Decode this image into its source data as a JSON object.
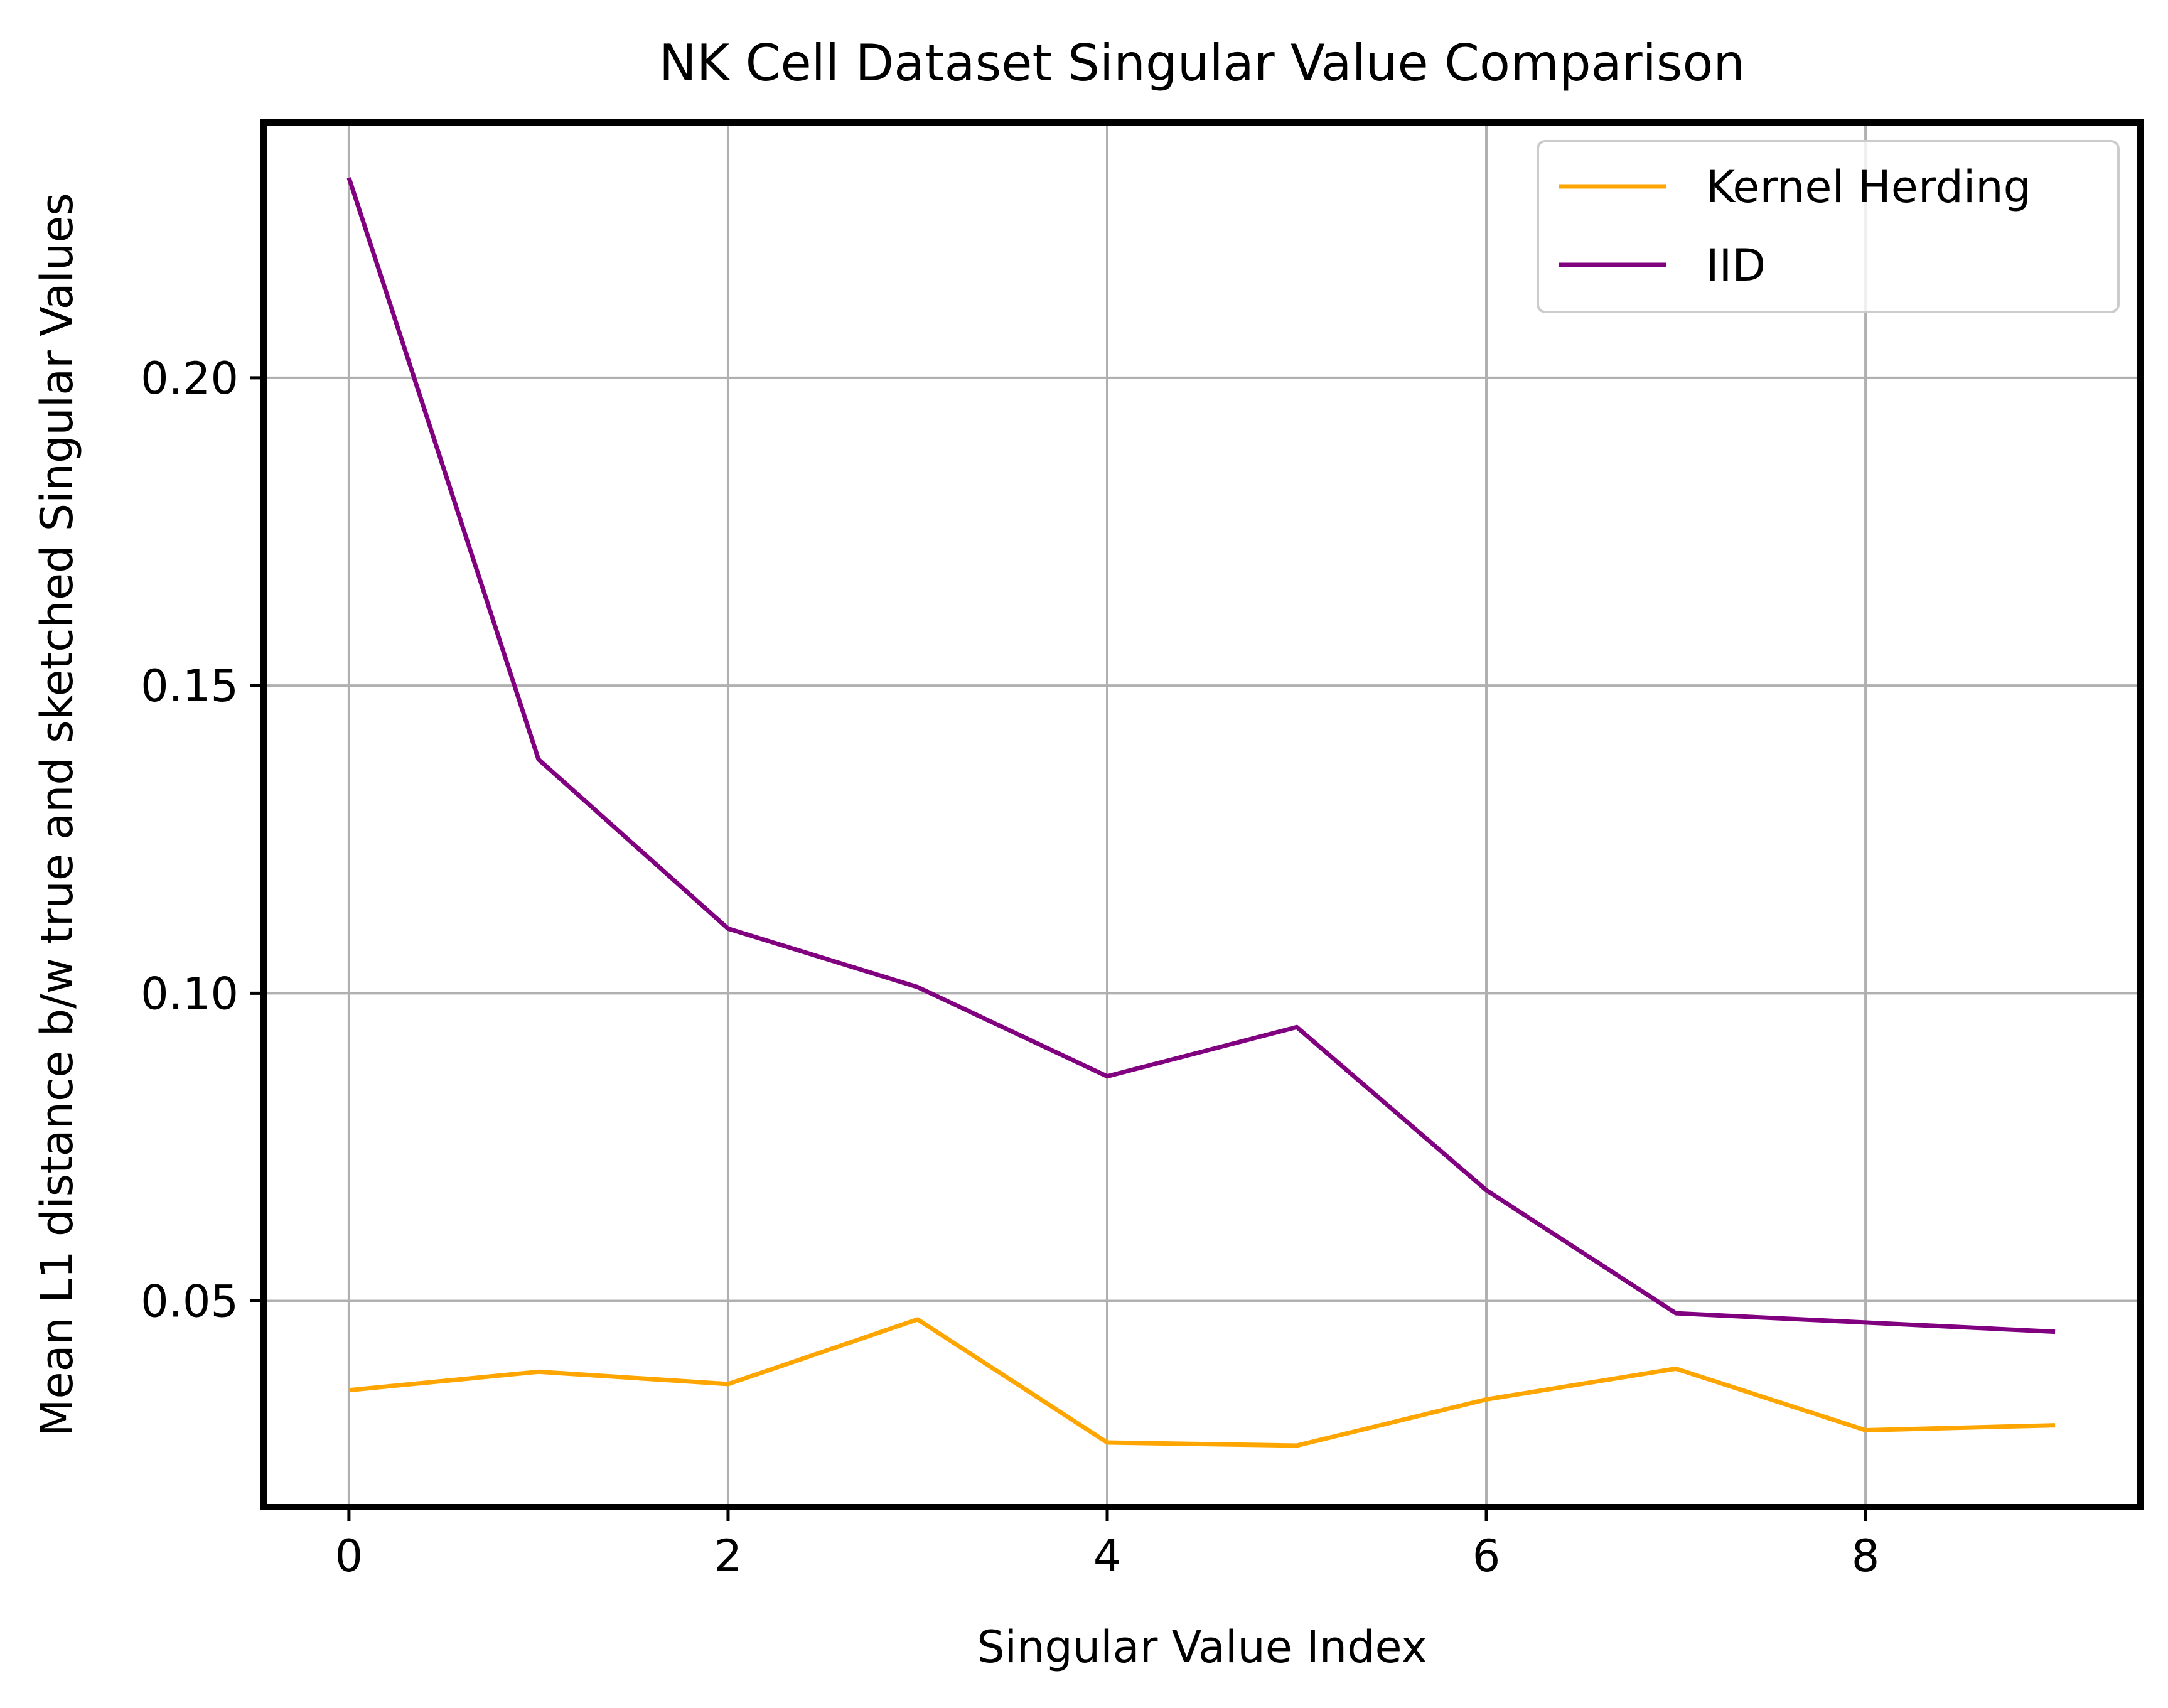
{
  "chart_data": {
    "type": "line",
    "title": "NK Cell Dataset Singular Value Comparison",
    "xlabel": "Singular Value Index",
    "ylabel": "Mean L1 distance b/w true and sketched Singular Values",
    "x": [
      0,
      1,
      2,
      3,
      4,
      5,
      6,
      7,
      8,
      9
    ],
    "xlim": [
      -0.45,
      9.45
    ],
    "ylim": [
      0.0165,
      0.2415
    ],
    "xticks": [
      0,
      2,
      4,
      6,
      8
    ],
    "xtick_labels": [
      "0",
      "2",
      "4",
      "6",
      "8"
    ],
    "yticks": [
      0.05,
      0.1,
      0.15,
      0.2
    ],
    "ytick_labels": [
      "0.05",
      "0.10",
      "0.15",
      "0.20"
    ],
    "grid": true,
    "legend_position": "top-right",
    "series": [
      {
        "name": "Kernel Herding",
        "color": "#ffa500",
        "values": [
          0.0355,
          0.0385,
          0.0365,
          0.047,
          0.027,
          0.0265,
          0.034,
          0.039,
          0.029,
          0.0298
        ]
      },
      {
        "name": "IID",
        "color": "#800080",
        "values": [
          0.2325,
          0.138,
          0.1105,
          0.101,
          0.0865,
          0.0945,
          0.068,
          0.048,
          0.0465,
          0.045
        ]
      }
    ]
  }
}
